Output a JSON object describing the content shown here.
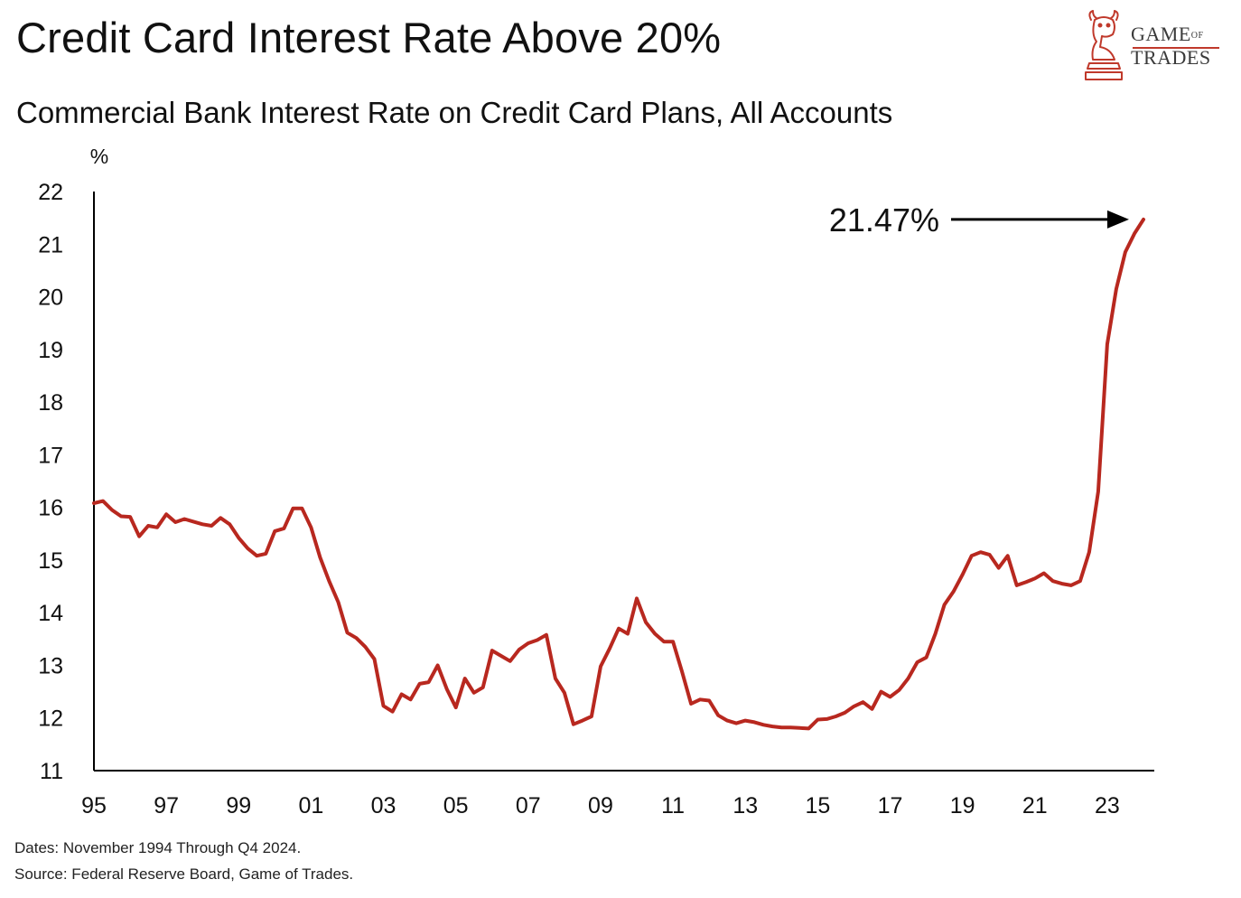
{
  "logo": {
    "line1": "GAME",
    "line1_small": "OF",
    "line2": "TRADES"
  },
  "footer": {
    "dates": "Dates: November 1994 Through Q4 2024.",
    "source": "Source: Federal Reserve Board, Game of Trades."
  },
  "colors": {
    "line": "#b8281f",
    "logo_accent": "#c0392b",
    "text": "#111111"
  },
  "chart_data": {
    "type": "line",
    "title": "Credit Card Interest Rate Above 20%",
    "subtitle": "Commercial Bank Interest Rate on Credit Card Plans, All Accounts",
    "ylabel": "%",
    "xlabel": "",
    "ylim": [
      11,
      22
    ],
    "xlim": [
      1995,
      2024.3
    ],
    "yticks": [
      22,
      21,
      20,
      19,
      18,
      17,
      16,
      15,
      14,
      13,
      12,
      11
    ],
    "xticks": [
      {
        "value": 1995,
        "label": "95"
      },
      {
        "value": 1997,
        "label": "97"
      },
      {
        "value": 1999,
        "label": "99"
      },
      {
        "value": 2001,
        "label": "01"
      },
      {
        "value": 2003,
        "label": "03"
      },
      {
        "value": 2005,
        "label": "05"
      },
      {
        "value": 2007,
        "label": "07"
      },
      {
        "value": 2009,
        "label": "09"
      },
      {
        "value": 2011,
        "label": "11"
      },
      {
        "value": 2013,
        "label": "13"
      },
      {
        "value": 2015,
        "label": "15"
      },
      {
        "value": 2017,
        "label": "17"
      },
      {
        "value": 2019,
        "label": "19"
      },
      {
        "value": 2021,
        "label": "21"
      },
      {
        "value": 2023,
        "label": "23"
      }
    ],
    "grid": false,
    "annotation": {
      "text": "21.47%",
      "x": 2024.0,
      "y": 21.47
    },
    "series": [
      {
        "name": "Interest Rate on Credit Card Plans, All Accounts",
        "x": [
          1995.0,
          1995.25,
          1995.5,
          1995.75,
          1996.0,
          1996.25,
          1996.5,
          1996.75,
          1997.0,
          1997.25,
          1997.5,
          1997.75,
          1998.0,
          1998.25,
          1998.5,
          1998.75,
          1999.0,
          1999.25,
          1999.5,
          1999.75,
          2000.0,
          2000.25,
          2000.5,
          2000.75,
          2001.0,
          2001.25,
          2001.5,
          2001.75,
          2002.0,
          2002.25,
          2002.5,
          2002.75,
          2003.0,
          2003.25,
          2003.5,
          2003.75,
          2004.0,
          2004.25,
          2004.5,
          2004.75,
          2005.0,
          2005.25,
          2005.5,
          2005.75,
          2006.0,
          2006.25,
          2006.5,
          2006.75,
          2007.0,
          2007.25,
          2007.5,
          2007.75,
          2008.0,
          2008.25,
          2008.5,
          2008.75,
          2009.0,
          2009.25,
          2009.5,
          2009.75,
          2010.0,
          2010.25,
          2010.5,
          2010.75,
          2011.0,
          2011.25,
          2011.5,
          2011.75,
          2012.0,
          2012.25,
          2012.5,
          2012.75,
          2013.0,
          2013.25,
          2013.5,
          2013.75,
          2014.0,
          2014.25,
          2014.5,
          2014.75,
          2015.0,
          2015.25,
          2015.5,
          2015.75,
          2016.0,
          2016.25,
          2016.5,
          2016.75,
          2017.0,
          2017.25,
          2017.5,
          2017.75,
          2018.0,
          2018.25,
          2018.5,
          2018.75,
          2019.0,
          2019.25,
          2019.5,
          2019.75,
          2020.0,
          2020.25,
          2020.5,
          2020.75,
          2021.0,
          2021.25,
          2021.5,
          2021.75,
          2022.0,
          2022.25,
          2022.5,
          2022.75,
          2023.0,
          2023.25,
          2023.5,
          2023.75,
          2024.0
        ],
        "values": [
          16.08,
          16.12,
          15.95,
          15.83,
          15.82,
          15.45,
          15.65,
          15.62,
          15.87,
          15.72,
          15.78,
          15.73,
          15.68,
          15.65,
          15.8,
          15.68,
          15.42,
          15.22,
          15.08,
          15.12,
          15.55,
          15.6,
          15.98,
          15.98,
          15.62,
          15.05,
          14.6,
          14.2,
          13.62,
          13.52,
          13.35,
          13.12,
          12.23,
          12.12,
          12.45,
          12.35,
          12.65,
          12.68,
          13.0,
          12.55,
          12.2,
          12.75,
          12.48,
          12.58,
          13.28,
          13.18,
          13.08,
          13.3,
          13.42,
          13.48,
          13.58,
          12.75,
          12.48,
          11.88,
          11.95,
          12.03,
          12.98,
          13.32,
          13.7,
          13.6,
          14.27,
          13.82,
          13.6,
          13.45,
          13.45,
          12.88,
          12.27,
          12.35,
          12.33,
          12.05,
          11.95,
          11.9,
          11.95,
          11.92,
          11.87,
          11.84,
          11.82,
          11.82,
          11.81,
          11.8,
          11.97,
          11.98,
          12.03,
          12.1,
          12.22,
          12.3,
          12.17,
          12.5,
          12.4,
          12.53,
          12.75,
          13.06,
          13.15,
          13.6,
          14.15,
          14.4,
          14.72,
          15.08,
          15.15,
          15.1,
          14.85,
          15.08,
          14.52,
          14.58,
          14.65,
          14.75,
          14.6,
          14.55,
          14.52,
          14.6,
          15.15,
          16.3,
          19.1,
          20.15,
          20.85,
          21.2,
          21.47
        ]
      }
    ]
  }
}
